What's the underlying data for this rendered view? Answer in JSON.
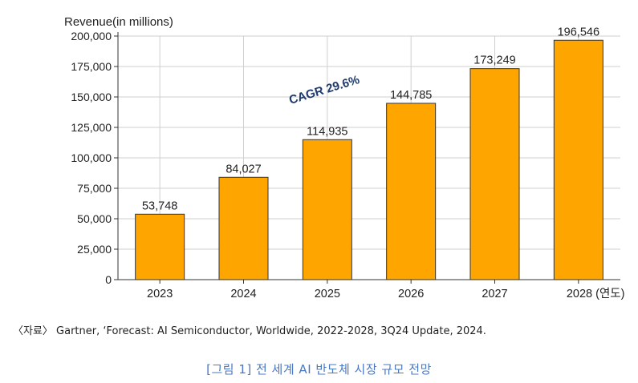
{
  "chart_data": {
    "type": "bar",
    "ylabel": "Revenue(in millions)",
    "categories": [
      "2023",
      "2024",
      "2025",
      "2026",
      "2027",
      "2028 (연도)"
    ],
    "values": [
      53748,
      84027,
      114935,
      144785,
      173249,
      196546
    ],
    "value_labels": [
      "53,748",
      "84,027",
      "114,935",
      "144,785",
      "173,249",
      "196,546"
    ],
    "ylim": [
      0,
      200000
    ],
    "yticks": [
      0,
      25000,
      50000,
      75000,
      100000,
      125000,
      150000,
      175000,
      200000
    ],
    "ytick_labels": [
      "0",
      "25,000",
      "50,000",
      "75,000",
      "100,000",
      "125,000",
      "150,000",
      "175,000",
      "200,000"
    ],
    "grid": true,
    "annotation": "CAGR 29.6%",
    "bar_color": "#ffa500",
    "annotation_color": "#1f3a6e"
  },
  "caption": {
    "source": "〈자료〉 Gartner, ‘Forecast: AI Semiconductor, Worldwide, 2022-2028, 3Q24 Update, 2024.",
    "title": "[그림 1] 전 세계 AI 반도체 시장 규모 전망"
  }
}
